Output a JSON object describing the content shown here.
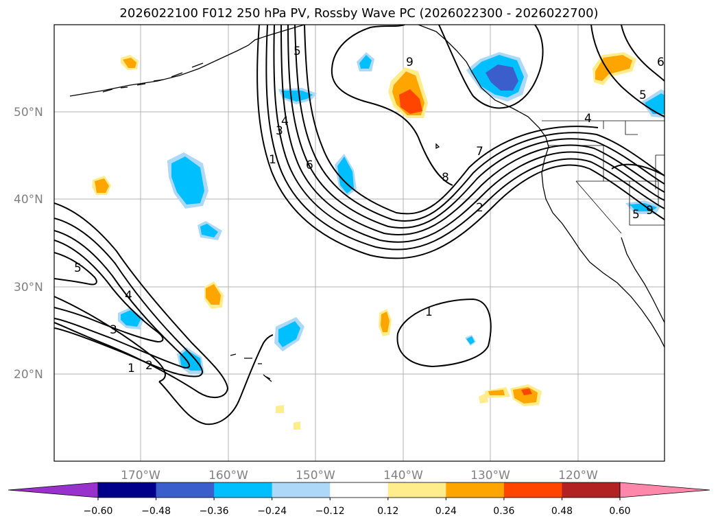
{
  "title": "2026022100 F012 250 hPa PV, Rossby Wave PC (2026022300 - 2026022700)",
  "lat_labels": [
    "50°N",
    "40°N",
    "30°N",
    "20°N"
  ],
  "lon_labels": [
    "170°W",
    "160°W",
    "150°W",
    "140°W",
    "130°W",
    "120°W"
  ],
  "colorbar": {
    "ticks": [
      "−0.60",
      "−0.48",
      "−0.36",
      "−0.24",
      "−0.12",
      "0.12",
      "0.24",
      "0.36",
      "0.48",
      "0.60"
    ],
    "colors": [
      "#9932cc",
      "#00008b",
      "#3a5fcd",
      "#00bfff",
      "#add8f7",
      "#ffffff",
      "#ffec8b",
      "#ffa500",
      "#ff4500",
      "#b22222",
      "#ff88aa"
    ]
  },
  "pv_contour_labels": [
    "1",
    "2",
    "3",
    "4",
    "5",
    "6",
    "7",
    "8",
    "9",
    "1",
    "2",
    "3",
    "4",
    "5",
    "6",
    "1",
    "5",
    "4",
    "5",
    "9"
  ]
}
